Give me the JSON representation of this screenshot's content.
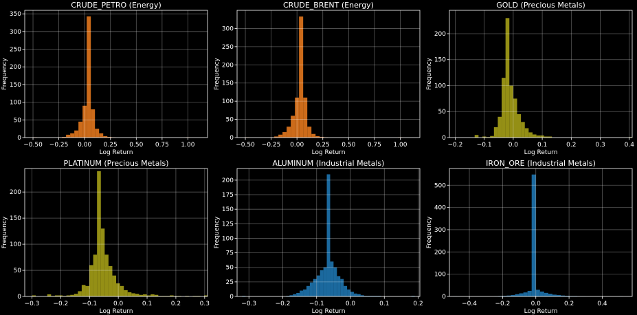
{
  "chart_data": [
    {
      "type": "bar",
      "title": "CRUDE_PETRO (Energy)",
      "xlabel": "Log Return",
      "ylabel": "Frequency",
      "color": "#e87a1e",
      "xlim": [
        -0.58,
        1.19
      ],
      "ylim": [
        0,
        360
      ],
      "xticks": [
        -0.5,
        -0.25,
        0.0,
        0.25,
        0.5,
        0.75,
        1.0
      ],
      "xtick_labels": [
        "−0.50",
        "−0.25",
        "0.00",
        "0.25",
        "0.50",
        "0.75",
        "1.00"
      ],
      "yticks": [
        0,
        50,
        100,
        150,
        200,
        250,
        300,
        350
      ],
      "ytick_labels": [
        "0",
        "50",
        "100",
        "150",
        "200",
        "250",
        "300",
        "350"
      ],
      "grid": true,
      "bin_start": -0.5,
      "bin_width": 0.04,
      "counts": [
        1,
        0,
        0,
        0,
        0,
        0,
        1,
        2,
        8,
        12,
        20,
        45,
        90,
        343,
        80,
        25,
        12,
        4,
        2,
        1,
        0,
        0,
        0,
        0,
        0,
        0,
        0,
        0,
        0,
        0,
        0,
        0,
        0,
        0,
        0,
        0,
        0,
        1
      ]
    },
    {
      "type": "bar",
      "title": "CRUDE_BRENT (Energy)",
      "xlabel": "Log Return",
      "ylabel": "Frequency",
      "color": "#e87a1e",
      "xlim": [
        -0.58,
        1.19
      ],
      "ylim": [
        0,
        350
      ],
      "xticks": [
        -0.5,
        -0.25,
        0.0,
        0.25,
        0.5,
        0.75,
        1.0
      ],
      "xtick_labels": [
        "−0.50",
        "−0.25",
        "0.00",
        "0.25",
        "0.50",
        "0.75",
        "1.00"
      ],
      "yticks": [
        0,
        50,
        100,
        150,
        200,
        250,
        300
      ],
      "ytick_labels": [
        "0",
        "50",
        "100",
        "150",
        "200",
        "250",
        "300"
      ],
      "grid": true,
      "bin_start": -0.5,
      "bin_width": 0.04,
      "counts": [
        1,
        0,
        0,
        0,
        0,
        0,
        1,
        3,
        8,
        15,
        30,
        60,
        110,
        333,
        110,
        30,
        10,
        4,
        2,
        1,
        0,
        0,
        0,
        0,
        0,
        0,
        0,
        0,
        0,
        0,
        0,
        0,
        0,
        0,
        0,
        0,
        0,
        1
      ]
    },
    {
      "type": "bar",
      "title": "GOLD (Precious Metals)",
      "xlabel": "Log Return",
      "ylabel": "Frequency",
      "color": "#a8a318",
      "xlim": [
        -0.22,
        0.41
      ],
      "ylim": [
        0,
        245
      ],
      "xticks": [
        -0.2,
        -0.1,
        0.0,
        0.1,
        0.2,
        0.3,
        0.4
      ],
      "xtick_labels": [
        "−0.2",
        "−0.1",
        "0.0",
        "0.1",
        "0.2",
        "0.3",
        "0.4"
      ],
      "yticks": [
        0,
        50,
        100,
        150,
        200
      ],
      "ytick_labels": [
        "0",
        "50",
        "100",
        "150",
        "200"
      ],
      "grid": true,
      "bin_start": -0.133,
      "bin_width": 0.0133,
      "counts": [
        5,
        0,
        2,
        1,
        3,
        20,
        40,
        115,
        230,
        100,
        75,
        45,
        30,
        18,
        10,
        6,
        4,
        4,
        2,
        2,
        0,
        0,
        0,
        0,
        0,
        0,
        0,
        0,
        0,
        0,
        0,
        0,
        0,
        0,
        0,
        0,
        0,
        0,
        0,
        0,
        1
      ]
    },
    {
      "type": "bar",
      "title": "PLATINUM (Precious Metals)",
      "xlabel": "Log Return",
      "ylabel": "Frequency",
      "color": "#a8a318",
      "xlim": [
        -0.325,
        0.31
      ],
      "ylim": [
        0,
        245
      ],
      "xticks": [
        -0.3,
        -0.2,
        -0.1,
        0.0,
        0.1,
        0.2,
        0.3
      ],
      "xtick_labels": [
        "−0.3",
        "−0.2",
        "−0.1",
        "0.0",
        "0.1",
        "0.2",
        "0.3"
      ],
      "yticks": [
        0,
        50,
        100,
        150,
        200
      ],
      "ytick_labels": [
        "0",
        "50",
        "100",
        "150",
        "200"
      ],
      "grid": true,
      "bin_start": -0.3,
      "bin_width": 0.0133,
      "counts": [
        2,
        0,
        0,
        0,
        4,
        1,
        2,
        2,
        1,
        2,
        3,
        5,
        10,
        22,
        20,
        60,
        80,
        240,
        130,
        80,
        58,
        40,
        25,
        20,
        12,
        8,
        6,
        5,
        3,
        4,
        2,
        4,
        3,
        1,
        1,
        1,
        2,
        1,
        1,
        0,
        1,
        0,
        1,
        1,
        0,
        2
      ]
    },
    {
      "type": "bar",
      "title": "ALUMINUM (Industrial Metals)",
      "xlabel": "Log Return",
      "ylabel": "Frequency",
      "color": "#1f77b4",
      "xlim": [
        -0.335,
        0.205
      ],
      "ylim": [
        0,
        220
      ],
      "xticks": [
        -0.3,
        -0.2,
        -0.1,
        0.0,
        0.1,
        0.2
      ],
      "xtick_labels": [
        "−0.3",
        "−0.2",
        "−0.1",
        "0.0",
        "0.1",
        "0.2"
      ],
      "yticks": [
        0,
        25,
        50,
        75,
        100,
        125,
        150,
        175,
        200
      ],
      "ytick_labels": [
        "0",
        "25",
        "50",
        "75",
        "100",
        "125",
        "150",
        "175",
        "200"
      ],
      "grid": true,
      "bin_start": -0.32,
      "bin_width": 0.01,
      "counts": [
        1,
        0,
        0,
        0,
        0,
        0,
        0,
        0,
        0,
        0,
        0,
        0,
        0,
        1,
        2,
        4,
        6,
        10,
        12,
        18,
        24,
        30,
        36,
        45,
        50,
        210,
        60,
        50,
        35,
        30,
        18,
        12,
        8,
        5,
        4,
        2,
        1,
        1,
        1,
        1,
        1,
        0,
        0,
        0,
        0,
        0,
        0,
        0,
        0,
        0,
        1
      ]
    },
    {
      "type": "bar",
      "title": "IRON_ORE (Industrial Metals)",
      "xlabel": "Log Return",
      "ylabel": "Frequency",
      "color": "#1f77b4",
      "xlim": [
        -0.52,
        0.58
      ],
      "ylim": [
        0,
        575
      ],
      "xticks": [
        -0.4,
        -0.2,
        0.0,
        0.2,
        0.4
      ],
      "xtick_labels": [
        "−0.4",
        "−0.2",
        "0.0",
        "0.2",
        "0.4"
      ],
      "yticks": [
        0,
        100,
        200,
        300,
        400,
        500
      ],
      "ytick_labels": [
        "0",
        "100",
        "200",
        "300",
        "400",
        "500"
      ],
      "grid": true,
      "bin_start": -0.5,
      "bin_width": 0.025,
      "counts": [
        1,
        0,
        0,
        0,
        0,
        0,
        0,
        0,
        0,
        0,
        1,
        2,
        3,
        4,
        6,
        10,
        14,
        18,
        25,
        548,
        30,
        22,
        16,
        12,
        8,
        6,
        4,
        3,
        2,
        2,
        1,
        1,
        0,
        0,
        0,
        0,
        0,
        0,
        0,
        0,
        1
      ]
    }
  ]
}
